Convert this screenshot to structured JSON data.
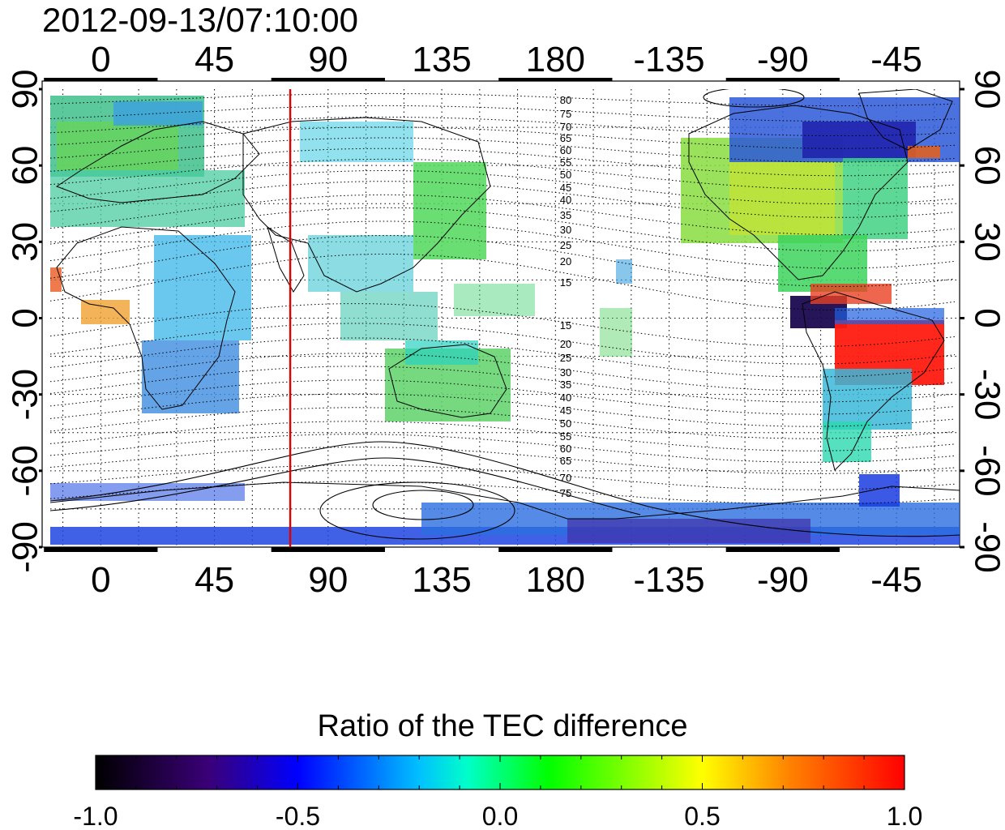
{
  "title": "2012-09-13/07:10:00",
  "map": {
    "top_axis_labels": [
      "0",
      "45",
      "90",
      "135",
      "180",
      "-135",
      "-90",
      "-45"
    ],
    "bottom_axis_labels": [
      "0",
      "45",
      "90",
      "135",
      "180",
      "-135",
      "-90",
      "-45"
    ],
    "left_axis_labels": [
      "90",
      "60",
      "30",
      "0",
      "-30",
      "-60",
      "-90"
    ],
    "right_axis_labels": [
      "90",
      "60",
      "30",
      "0",
      "-30",
      "-60",
      "-90"
    ],
    "longitude_range": [
      -20,
      340
    ],
    "latitude_range": [
      -90,
      90
    ],
    "grid": "dotted, every 15 degrees",
    "marker_meridian_longitude": 75,
    "marker_meridian_color": "#e00000",
    "contour_labels_north": [
      "80",
      "75",
      "70",
      "65",
      "60",
      "55",
      "50",
      "45",
      "40",
      "35",
      "30",
      "25",
      "20",
      "15"
    ],
    "contour_labels_south": [
      "15",
      "20",
      "25",
      "30",
      "35",
      "40",
      "45",
      "50",
      "55",
      "60",
      "65",
      "70",
      "75"
    ]
  },
  "colorbar": {
    "title": "Ratio of the TEC difference",
    "min": -1.0,
    "max": 1.0,
    "tick_labels": [
      "-1.0",
      "-0.5",
      "0.0",
      "0.5",
      "1.0"
    ],
    "colormap": [
      "#000000",
      "#3a0078",
      "#0000ff",
      "#00c0ff",
      "#00ffc8",
      "#00ff00",
      "#ffff00",
      "#ff8000",
      "#ff0000"
    ]
  }
}
